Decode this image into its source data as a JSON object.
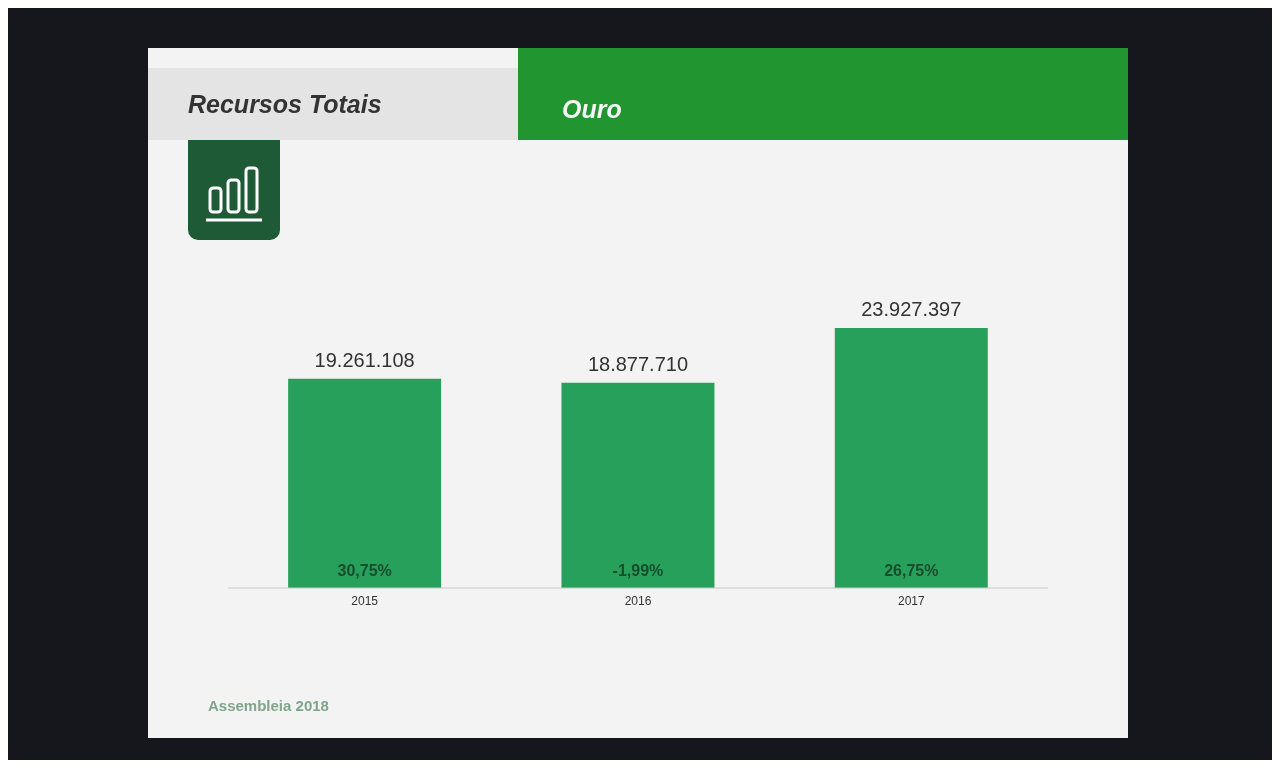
{
  "chart_data": {
    "type": "bar",
    "title": "Recursos Totais",
    "subtitle": "Ouro",
    "categories": [
      "2015",
      "2016",
      "2017"
    ],
    "values": [
      19261108,
      18877710,
      23927397
    ],
    "color": "#27a05c",
    "value_labels": [
      "19.261.108",
      "18.877.710",
      "23.927.397"
    ],
    "annotations": [
      "30,75%",
      "-1,99%",
      "26,75%",
      "Assembleia 2018"
    ],
    "grid": false,
    "legend": false
  }
}
